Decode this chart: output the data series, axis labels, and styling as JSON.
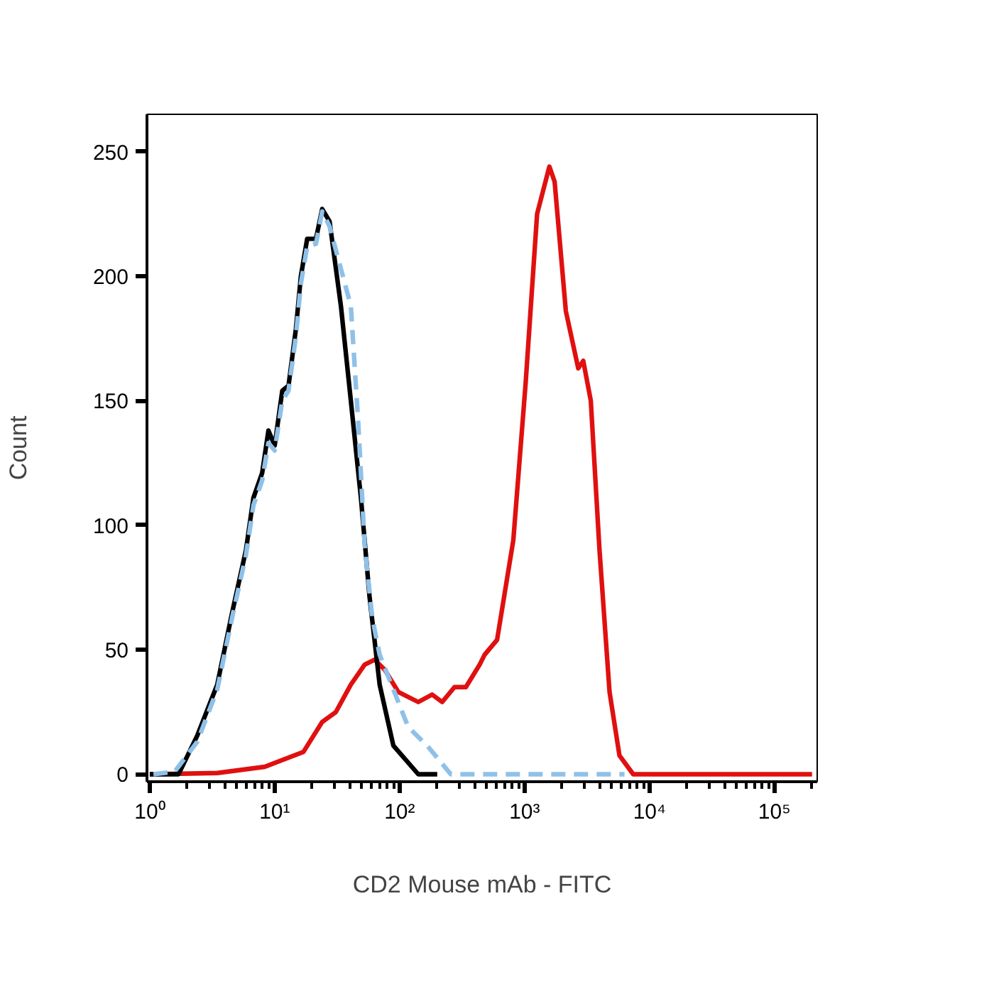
{
  "chart_data": {
    "type": "line",
    "xlabel": "CD2 Mouse mAb - FITC",
    "ylabel": "Count",
    "log": "x",
    "grid": false,
    "marker": "none",
    "xlim": [
      0.95,
      220000
    ],
    "xticks": [
      {
        "value": 1,
        "label": "10⁰"
      },
      {
        "value": 10,
        "label": "10¹"
      },
      {
        "value": 100,
        "label": "10²"
      },
      {
        "value": 1000,
        "label": "10³"
      },
      {
        "value": 10000,
        "label": "10⁴"
      },
      {
        "value": 100000,
        "label": "10⁵"
      }
    ],
    "ylim": [
      -3,
      265
    ],
    "yticks": [
      0,
      50,
      100,
      150,
      200,
      250
    ],
    "series": [
      {
        "color": "#e01010",
        "line_style": "solid",
        "x": [
          1,
          3.47,
          8.32,
          17.0,
          24.0,
          30.9,
          40.7,
          52.5,
          63.1,
          75.9,
          97.7,
          141,
          182,
          219,
          275,
          339,
          437,
          479,
          603,
          813,
          1020,
          1260,
          1580,
          1740,
          2140,
          2690,
          2950,
          3390,
          3980,
          4790,
          5750,
          7410,
          200000
        ],
        "values": [
          0,
          0.5,
          3,
          9,
          21,
          25,
          36,
          44,
          46,
          42,
          33,
          29,
          32,
          29,
          35,
          35,
          44,
          48,
          54,
          94,
          157,
          225,
          244,
          238,
          186,
          163,
          166,
          150,
          90,
          33,
          7.5,
          0,
          0
        ]
      },
      {
        "color": "#000000",
        "line_style": "solid",
        "x": [
          1,
          1.7,
          2.4,
          3.47,
          4.57,
          5.89,
          6.76,
          7.94,
          8.91,
          10,
          11.5,
          12.9,
          14.8,
          16.2,
          18.2,
          21.4,
          24.0,
          27.5,
          33.9,
          40.7,
          49.0,
          57.5,
          69.2,
          89.1,
          141,
          200
        ],
        "values": [
          0,
          0,
          15.5,
          36,
          65,
          90,
          111,
          121,
          138,
          132,
          154,
          156,
          179,
          200,
          215,
          215,
          227,
          222,
          188,
          150,
          111,
          71,
          36,
          11.5,
          0,
          0
        ]
      },
      {
        "color": "#8fc1e8",
        "line_style": "dashed",
        "x": [
          1.07,
          1.58,
          2.4,
          3.47,
          4.57,
          5.89,
          6.76,
          7.94,
          8.91,
          10,
          11.5,
          12.9,
          14.8,
          16.2,
          18.2,
          21.4,
          24.0,
          27.5,
          40.7,
          46.8,
          52.5,
          60.3,
          69.2,
          117,
          166,
          257,
          6310
        ],
        "values": [
          0,
          1,
          13,
          34,
          63,
          88,
          108,
          118,
          133,
          130,
          150,
          154,
          176,
          197,
          212,
          213,
          226,
          220,
          188,
          140,
          92,
          63,
          48,
          19,
          11.5,
          0,
          0
        ]
      }
    ]
  }
}
